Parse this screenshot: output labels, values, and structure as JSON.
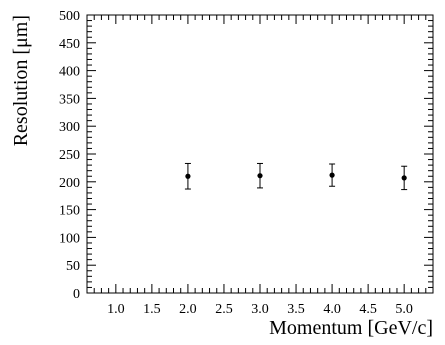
{
  "chart_data": {
    "type": "scatter",
    "xlabel": "Momentum [GeV/c]",
    "ylabel": "Resolution [μm]",
    "xlim": [
      0.6,
      5.4
    ],
    "ylim": [
      0,
      500
    ],
    "grid": false,
    "x_ticks": [
      "1.0",
      "1.5",
      "2.0",
      "2.5",
      "3.0",
      "3.5",
      "4.0",
      "4.5",
      "5.0"
    ],
    "y_ticks": [
      "0",
      "50",
      "100",
      "150",
      "200",
      "250",
      "300",
      "350",
      "400",
      "450",
      "500"
    ],
    "series": [
      {
        "x": [
          2.0,
          3.0,
          4.0,
          5.0
        ],
        "y": [
          210,
          211,
          212,
          207
        ],
        "yerr": [
          23,
          22,
          20,
          21
        ]
      }
    ]
  }
}
